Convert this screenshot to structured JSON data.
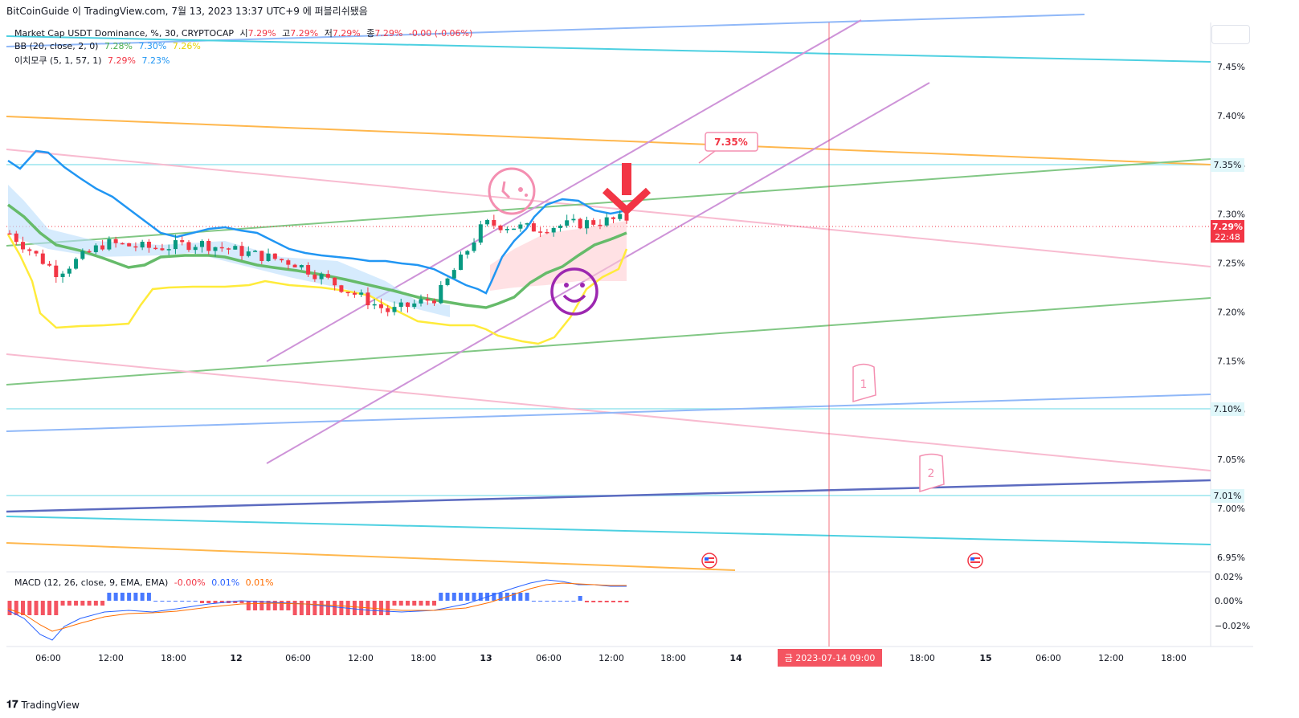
{
  "header": {
    "publish_line": "BitCoinGuide 이 TradingView.com, 7월 13, 2023 13:37 UTC+9 에 퍼블리쉬됐음"
  },
  "legend": {
    "main": {
      "label": "Market Cap USDT Dominance, %, 30, CRYPTOCAP",
      "o_label": "시",
      "o": "7.29%",
      "h_label": "고",
      "h": "7.29%",
      "l_label": "저",
      "l": "7.29%",
      "c_label": "종",
      "c": "7.29%",
      "change": "-0.00 (-0.06%)"
    },
    "bb": {
      "label": "BB (20, close, 2, 0)",
      "basis": "7.28%",
      "upper": "7.30%",
      "lower": "7.26%"
    },
    "ichimoku": {
      "label": "이치모쿠 (5, 1, 57, 1)",
      "v1": "7.29%",
      "v2": "7.23%"
    },
    "macd": {
      "label": "MACD (12, 26, close, 9, EMA, EMA)",
      "hist": "-0.00%",
      "macd": "0.01%",
      "signal": "0.01%"
    }
  },
  "price_axis": {
    "ticks": [
      "7.45%",
      "7.40%",
      "7.35%",
      "7.30%",
      "7.25%",
      "7.20%",
      "7.15%",
      "7.10%",
      "7.05%",
      "7.00%",
      "6.95%"
    ],
    "current_price": "7.29%",
    "countdown": "22:48",
    "level_labels": [
      "7.35%",
      "7.10%",
      "7.01%"
    ]
  },
  "macd_axis": {
    "ticks": [
      "0.02%",
      "0.00%",
      "−0.02%"
    ]
  },
  "time_axis": {
    "ticks": [
      "06:00",
      "12:00",
      "18:00",
      "12",
      "06:00",
      "12:00",
      "18:00",
      "13",
      "06:00",
      "12:00",
      "18:00",
      "14",
      "18:00",
      "15",
      "06:00",
      "12:00",
      "18:00"
    ],
    "crosshair_label": "금 2023-07-14  09:00"
  },
  "annotations": {
    "price_note": "7.35%",
    "wave1": "1",
    "wave2": "2"
  },
  "footer": {
    "brand": "TradingView"
  },
  "colors": {
    "up": "#089981",
    "down": "#f23645",
    "bb_basis": "#4caf50",
    "bb_band": "#2196f3",
    "ichimoku": "#ffeb3b",
    "crosshair": "#f23645"
  },
  "chart_data": {
    "type": "line",
    "title": "Market Cap USDT Dominance, %, 30, CRYPTOCAP",
    "ylabel": "",
    "xlabel": "",
    "ylim": [
      6.93,
      7.49
    ],
    "x": [
      "07-12 00:00",
      "07-12 03:00",
      "07-12 06:00",
      "07-12 09:00",
      "07-12 12:00",
      "07-12 15:00",
      "07-12 18:00",
      "07-12 21:00",
      "07-13 00:00",
      "07-13 03:00",
      "07-13 06:00",
      "07-13 09:00",
      "07-13 12:00",
      "07-13 13:30"
    ],
    "series": [
      {
        "name": "close",
        "values": [
          7.275,
          7.235,
          7.265,
          7.26,
          7.265,
          7.255,
          7.245,
          7.22,
          7.195,
          7.21,
          7.285,
          7.28,
          7.285,
          7.29
        ]
      },
      {
        "name": "BB basis",
        "values": [
          7.27,
          7.255,
          7.26,
          7.26,
          7.26,
          7.255,
          7.24,
          7.225,
          7.215,
          7.205,
          7.225,
          7.255,
          7.27,
          7.28
        ]
      },
      {
        "name": "BB upper",
        "values": [
          7.34,
          7.31,
          7.285,
          7.285,
          7.285,
          7.28,
          7.27,
          7.27,
          7.255,
          7.235,
          7.29,
          7.31,
          7.3,
          7.3
        ]
      },
      {
        "name": "BB lower",
        "values": [
          7.2,
          7.2,
          7.235,
          7.235,
          7.235,
          7.23,
          7.21,
          7.19,
          7.19,
          7.18,
          7.165,
          7.17,
          7.235,
          7.26
        ]
      }
    ]
  }
}
